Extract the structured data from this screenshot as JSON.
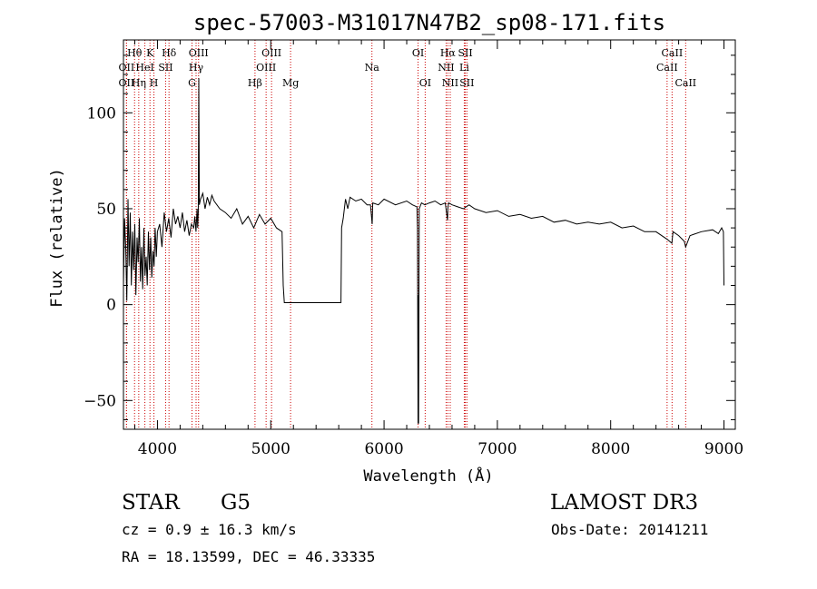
{
  "chart_data": {
    "type": "line",
    "title": "spec-57003-M31017N47B2_sp08-171.fits",
    "xlabel": "Wavelength (Å)",
    "ylabel": "Flux (relative)",
    "xlim": [
      3700,
      9100
    ],
    "ylim": [
      -65,
      138
    ],
    "xticks": [
      4000,
      5000,
      6000,
      7000,
      8000,
      9000
    ],
    "yticks": [
      -50,
      0,
      50,
      100
    ],
    "xtick_labels": [
      "4000",
      "5000",
      "6000",
      "7000",
      "8000",
      "9000"
    ],
    "ytick_labels": [
      "−50",
      "0",
      "50",
      "100"
    ],
    "series": [
      {
        "name": "flux",
        "x": [
          3700,
          3710,
          3720,
          3730,
          3740,
          3750,
          3760,
          3770,
          3780,
          3790,
          3800,
          3810,
          3820,
          3830,
          3840,
          3850,
          3860,
          3870,
          3880,
          3890,
          3900,
          3910,
          3920,
          3930,
          3940,
          3950,
          3960,
          3970,
          3980,
          3990,
          4000,
          4020,
          4040,
          4060,
          4080,
          4100,
          4120,
          4140,
          4160,
          4180,
          4200,
          4220,
          4240,
          4260,
          4280,
          4300,
          4320,
          4330,
          4340,
          4350,
          4355,
          4360,
          4365,
          4370,
          4380,
          4400,
          4420,
          4440,
          4460,
          4480,
          4500,
          4550,
          4600,
          4650,
          4700,
          4750,
          4800,
          4850,
          4900,
          4950,
          5000,
          5050,
          5100,
          5110,
          5120,
          5130,
          5200,
          5400,
          5600,
          5620,
          5625,
          5640,
          5660,
          5680,
          5700,
          5750,
          5800,
          5850,
          5880,
          5895,
          5900,
          5950,
          6000,
          6100,
          6200,
          6250,
          6290,
          6295,
          6300,
          6303,
          6305,
          6310,
          6330,
          6360,
          6400,
          6450,
          6500,
          6540,
          6560,
          6563,
          6570,
          6600,
          6650,
          6700,
          6750,
          6800,
          6900,
          7000,
          7100,
          7200,
          7300,
          7400,
          7500,
          7600,
          7700,
          7800,
          7900,
          8000,
          8100,
          8200,
          8300,
          8400,
          8500,
          8540,
          8550,
          8600,
          8650,
          8662,
          8700,
          8800,
          8900,
          8950,
          8980,
          8995,
          9000
        ],
        "y": [
          10,
          45,
          30,
          2,
          55,
          20,
          48,
          10,
          38,
          18,
          42,
          5,
          35,
          22,
          45,
          12,
          30,
          8,
          40,
          15,
          25,
          10,
          38,
          18,
          35,
          14,
          28,
          20,
          40,
          25,
          38,
          42,
          30,
          48,
          38,
          45,
          35,
          50,
          42,
          46,
          40,
          48,
          38,
          44,
          36,
          42,
          40,
          46,
          38,
          50,
          40,
          48,
          118,
          52,
          55,
          58,
          50,
          56,
          52,
          57,
          54,
          50,
          48,
          45,
          50,
          42,
          46,
          40,
          47,
          42,
          45,
          40,
          38,
          10,
          1,
          1,
          1,
          1,
          1,
          1,
          40,
          45,
          55,
          50,
          56,
          54,
          55,
          52,
          52,
          42,
          53,
          52,
          55,
          52,
          54,
          52,
          51,
          40,
          -62,
          5,
          -62,
          50,
          53,
          52,
          53,
          54,
          52,
          53,
          44,
          50,
          53,
          52,
          51,
          50,
          52,
          50,
          48,
          49,
          46,
          47,
          45,
          46,
          43,
          44,
          42,
          43,
          42,
          43,
          40,
          41,
          38,
          38,
          34,
          32,
          38,
          36,
          33,
          30,
          36,
          38,
          39,
          37,
          40,
          38,
          10
        ]
      }
    ],
    "spectral_lines": [
      {
        "label": "OII",
        "x": 3727,
        "row": 3
      },
      {
        "label": "OII",
        "x": 3727,
        "row": 2
      },
      {
        "label": "Hθ",
        "x": 3798,
        "row": 1
      },
      {
        "label": "Hη",
        "x": 3835,
        "row": 3
      },
      {
        "label": "HeI",
        "x": 3889,
        "row": 2
      },
      {
        "label": "K",
        "x": 3934,
        "row": 1
      },
      {
        "label": "H",
        "x": 3969,
        "row": 3
      },
      {
        "label": "SII",
        "x": 4072,
        "row": 2
      },
      {
        "label": "Hδ",
        "x": 4102,
        "row": 1
      },
      {
        "label": "G",
        "x": 4305,
        "row": 3
      },
      {
        "label": "Hγ",
        "x": 4341,
        "row": 2
      },
      {
        "label": "OIII",
        "x": 4363,
        "row": 1
      },
      {
        "label": "Hβ",
        "x": 4861,
        "row": 3
      },
      {
        "label": "OIII",
        "x": 4959,
        "row": 2
      },
      {
        "label": "OIII",
        "x": 5007,
        "row": 1
      },
      {
        "label": "Mg",
        "x": 5175,
        "row": 3
      },
      {
        "label": "Na",
        "x": 5893,
        "row": 2
      },
      {
        "label": "OI",
        "x": 6300,
        "row": 1
      },
      {
        "label": "OI",
        "x": 6363,
        "row": 3
      },
      {
        "label": "NII",
        "x": 6548,
        "row": 2
      },
      {
        "label": "Hα",
        "x": 6563,
        "row": 1
      },
      {
        "label": "NII",
        "x": 6584,
        "row": 3
      },
      {
        "label": "Li",
        "x": 6708,
        "row": 2
      },
      {
        "label": "SII",
        "x": 6717,
        "row": 1
      },
      {
        "label": "SII",
        "x": 6731,
        "row": 3
      },
      {
        "label": "CaII",
        "x": 8498,
        "row": 2
      },
      {
        "label": "CaII",
        "x": 8542,
        "row": 1
      },
      {
        "label": "CaII",
        "x": 8662,
        "row": 3
      }
    ],
    "grid": false,
    "line_color": "#000000",
    "marker_color": "#cc0000"
  },
  "info": {
    "object_class": "STAR",
    "subclass": "G5",
    "survey": "LAMOST DR3",
    "redshift": "cz = 0.9 ± 16.3 km/s",
    "obs_date": "Obs-Date: 20141211",
    "coords": "RA =  18.13599, DEC =  46.33335"
  }
}
